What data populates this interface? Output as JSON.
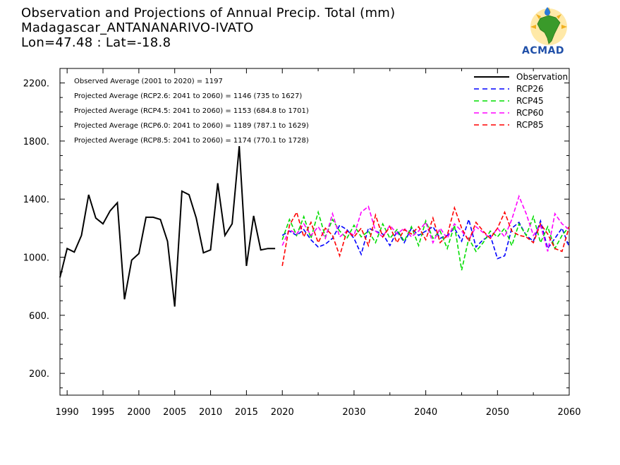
{
  "header": {
    "title": "Observation and Projections of Annual Precip. Total (mm)",
    "station": "Madagascar_ANTANANARIVO-IVATO",
    "coords": "Lon=47.48 : Lat=-18.8"
  },
  "logo": {
    "text": "ACMAD",
    "icon": "africa-logo-icon"
  },
  "colors": {
    "Observation": "#000000",
    "RCP26": "#0000ff",
    "RCP45": "#00dd00",
    "RCP60": "#ff00ff",
    "RCP85": "#ff0000"
  },
  "chart_data": {
    "type": "line",
    "title": "Observation and Projections of Annual Precip. Total (mm)",
    "xlim": [
      1989,
      2060
    ],
    "ylim": [
      50,
      2300
    ],
    "x_ticks": [
      1990,
      1995,
      2000,
      2005,
      2010,
      2015,
      2020,
      2030,
      2040,
      2050,
      2060
    ],
    "y_ticks": [
      200,
      600,
      1000,
      1400,
      1800,
      2200
    ],
    "y_tick_labels": [
      "200.",
      "600.",
      "1000.",
      "1400.",
      "1800.",
      "2200."
    ],
    "legend_position": "top-right",
    "annotations": [
      "Observed Average (2001 to 2020) = 1197",
      "Projected Average (RCP2.6: 2041 to 2060) = 1146 (735 to 1627)",
      "Projected Average (RCP4.5: 2041 to 2060) = 1153 (684.8 to 1701)",
      "Projected Average (RCP6.0: 2041 to 2060) = 1189 (787.1 to 1629)",
      "Projected Average (RCP8.5: 2041 to 2060) = 1174 (770.1 to 1728)"
    ],
    "series": [
      {
        "name": "Observation",
        "dash": "solid",
        "x": [
          1989,
          1990,
          1991,
          1992,
          1993,
          1994,
          1995,
          1996,
          1997,
          1998,
          1999,
          2000,
          2001,
          2002,
          2003,
          2004,
          2005,
          2006,
          2007,
          2008,
          2009,
          2010,
          2011,
          2012,
          2013,
          2014,
          2015,
          2016,
          2017,
          2018,
          2019
        ],
        "values": [
          860,
          1060,
          1035,
          1150,
          1430,
          1270,
          1230,
          1320,
          1375,
          710,
          980,
          1025,
          1275,
          1275,
          1260,
          1110,
          660,
          1455,
          1430,
          1270,
          1030,
          1050,
          1510,
          1150,
          1230,
          1765,
          940,
          1285,
          1050,
          1060,
          1060
        ]
      },
      {
        "name": "RCP26",
        "dash": "dashed",
        "x": [
          2020,
          2021,
          2022,
          2023,
          2024,
          2025,
          2026,
          2027,
          2028,
          2029,
          2030,
          2031,
          2032,
          2033,
          2034,
          2035,
          2036,
          2037,
          2038,
          2039,
          2040,
          2041,
          2042,
          2043,
          2044,
          2045,
          2046,
          2047,
          2048,
          2049,
          2050,
          2051,
          2052,
          2053,
          2054,
          2055,
          2056,
          2057,
          2058,
          2059,
          2060
        ],
        "values": [
          1150,
          1180,
          1150,
          1190,
          1120,
          1070,
          1090,
          1130,
          1220,
          1190,
          1130,
          1020,
          1200,
          1180,
          1160,
          1080,
          1180,
          1100,
          1200,
          1150,
          1180,
          1210,
          1130,
          1150,
          1200,
          1110,
          1260,
          1070,
          1120,
          1150,
          990,
          1010,
          1200,
          1240,
          1150,
          1110,
          1250,
          1060,
          1130,
          1200,
          1070
        ]
      },
      {
        "name": "RCP45",
        "dash": "dashed",
        "x": [
          2020,
          2021,
          2022,
          2023,
          2024,
          2025,
          2026,
          2027,
          2028,
          2029,
          2030,
          2031,
          2032,
          2033,
          2034,
          2035,
          2036,
          2037,
          2038,
          2039,
          2040,
          2041,
          2042,
          2043,
          2044,
          2045,
          2046,
          2047,
          2048,
          2049,
          2050,
          2051,
          2052,
          2053,
          2054,
          2055,
          2056,
          2057,
          2058,
          2059,
          2060
        ],
        "values": [
          1120,
          1260,
          1150,
          1280,
          1130,
          1310,
          1140,
          1260,
          1180,
          1130,
          1220,
          1140,
          1180,
          1100,
          1230,
          1130,
          1190,
          1110,
          1210,
          1080,
          1250,
          1130,
          1180,
          1060,
          1220,
          910,
          1130,
          1040,
          1100,
          1180,
          1140,
          1200,
          1080,
          1230,
          1150,
          1280,
          1100,
          1210,
          1060,
          1150,
          1210
        ]
      },
      {
        "name": "RCP60",
        "dash": "dashed",
        "x": [
          2020,
          2021,
          2022,
          2023,
          2024,
          2025,
          2026,
          2027,
          2028,
          2029,
          2030,
          2031,
          2032,
          2033,
          2034,
          2035,
          2036,
          2037,
          2038,
          2039,
          2040,
          2041,
          2042,
          2043,
          2044,
          2045,
          2046,
          2047,
          2048,
          2049,
          2050,
          2051,
          2052,
          2053,
          2054,
          2055,
          2056,
          2057,
          2058,
          2059,
          2060
        ],
        "values": [
          1080,
          1190,
          1160,
          1230,
          1150,
          1210,
          1130,
          1300,
          1140,
          1180,
          1150,
          1310,
          1350,
          1180,
          1140,
          1220,
          1160,
          1200,
          1140,
          1180,
          1240,
          1100,
          1200,
          1130,
          1230,
          1180,
          1120,
          1210,
          1170,
          1130,
          1200,
          1140,
          1260,
          1420,
          1300,
          1150,
          1220,
          1040,
          1300,
          1230,
          1190
        ]
      },
      {
        "name": "RCP85",
        "dash": "dashed",
        "x": [
          2020,
          2021,
          2022,
          2023,
          2024,
          2025,
          2026,
          2027,
          2028,
          2029,
          2030,
          2031,
          2032,
          2033,
          2034,
          2035,
          2036,
          2037,
          2038,
          2039,
          2040,
          2041,
          2042,
          2043,
          2044,
          2045,
          2046,
          2047,
          2048,
          2049,
          2050,
          2051,
          2052,
          2053,
          2054,
          2055,
          2056,
          2057,
          2058,
          2059,
          2060
        ],
        "values": [
          940,
          1220,
          1310,
          1140,
          1240,
          1100,
          1200,
          1150,
          1010,
          1180,
          1140,
          1200,
          1080,
          1290,
          1140,
          1210,
          1100,
          1190,
          1160,
          1210,
          1120,
          1270,
          1100,
          1150,
          1340,
          1200,
          1110,
          1240,
          1180,
          1130,
          1200,
          1310,
          1180,
          1150,
          1140,
          1100,
          1230,
          1160,
          1060,
          1040,
          1210
        ]
      }
    ]
  }
}
